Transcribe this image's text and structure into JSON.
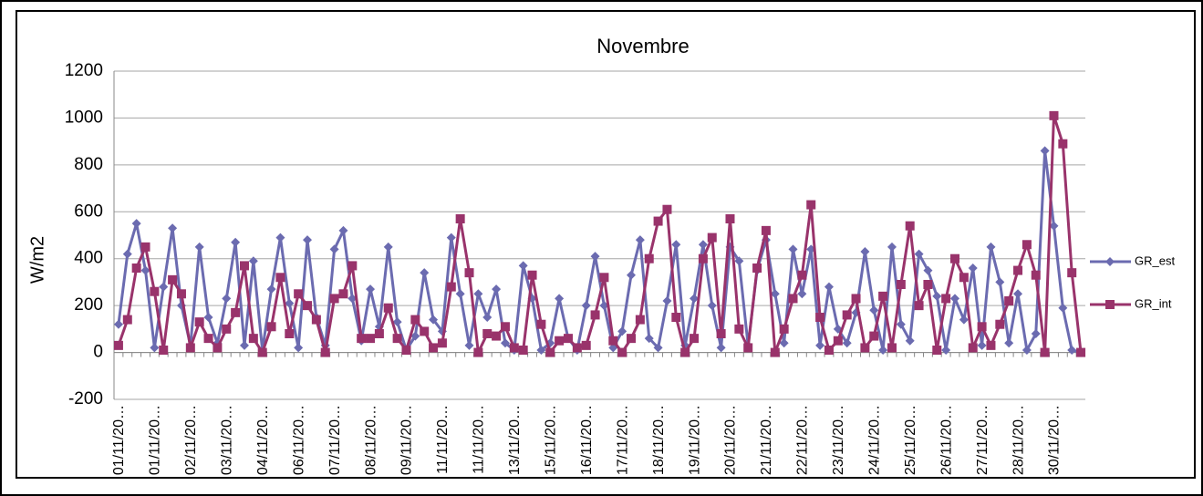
{
  "chart_data": {
    "type": "line",
    "title": "Novembre",
    "y_label": "W/m2",
    "categories": [
      "01/11/20…",
      null,
      null,
      null,
      "01/11/20…",
      null,
      null,
      null,
      "02/11/20…",
      null,
      null,
      null,
      "03/11/20…",
      null,
      null,
      null,
      "04/11/20…",
      null,
      null,
      null,
      "06/11/20…",
      null,
      null,
      null,
      "07/11/20…",
      null,
      null,
      null,
      "08/11/20…",
      null,
      null,
      null,
      "09/11/20…",
      null,
      null,
      null,
      "11/11/20…",
      null,
      null,
      null,
      "11/11/20…",
      null,
      null,
      null,
      "13/11/20…",
      null,
      null,
      null,
      "15/11/20…",
      null,
      null,
      null,
      "16/11/20…",
      null,
      null,
      null,
      "17/11/20…",
      null,
      null,
      null,
      "18/11/20…",
      null,
      null,
      null,
      "19/11/20…",
      null,
      null,
      null,
      "20/11/20…",
      null,
      null,
      null,
      "21/11/20…",
      null,
      null,
      null,
      "22/11/20…",
      null,
      null,
      null,
      "23/11/20…",
      null,
      null,
      null,
      "24/11/20…",
      null,
      null,
      null,
      "25/11/20…",
      null,
      null,
      null,
      "26/11/20…",
      null,
      null,
      null,
      "27/11/20…",
      null,
      null,
      null,
      "28/11/20…",
      null,
      null,
      null,
      "30/11/20…",
      null,
      null,
      null
    ],
    "series": [
      {
        "name": "GR_est",
        "color": "#6b6bb0",
        "marker": "diamond",
        "values": [
          120,
          420,
          550,
          350,
          20,
          280,
          530,
          200,
          30,
          450,
          150,
          40,
          230,
          470,
          30,
          390,
          10,
          270,
          490,
          210,
          20,
          480,
          150,
          30,
          440,
          520,
          230,
          50,
          270,
          110,
          450,
          130,
          10,
          70,
          340,
          140,
          90,
          490,
          250,
          30,
          250,
          150,
          270,
          40,
          10,
          370,
          230,
          10,
          40,
          230,
          60,
          10,
          200,
          410,
          200,
          20,
          90,
          330,
          480,
          60,
          20,
          220,
          460,
          30,
          230,
          460,
          200,
          20,
          450,
          390,
          30,
          350,
          480,
          250,
          40,
          440,
          250,
          440,
          30,
          280,
          100,
          40,
          170,
          430,
          180,
          10,
          450,
          120,
          50,
          420,
          350,
          240,
          10,
          230,
          140,
          360,
          30,
          450,
          300,
          40,
          250,
          10,
          80,
          860,
          540,
          190,
          10,
          0
        ]
      },
      {
        "name": "GR_int",
        "color": "#99336b",
        "marker": "square",
        "values": [
          30,
          140,
          360,
          450,
          260,
          10,
          310,
          250,
          20,
          130,
          60,
          20,
          100,
          170,
          370,
          60,
          0,
          110,
          320,
          80,
          250,
          200,
          140,
          0,
          230,
          250,
          370,
          60,
          60,
          80,
          190,
          60,
          10,
          140,
          90,
          20,
          40,
          280,
          570,
          340,
          0,
          80,
          70,
          110,
          20,
          10,
          330,
          120,
          0,
          50,
          60,
          20,
          30,
          160,
          320,
          50,
          0,
          60,
          140,
          400,
          560,
          610,
          150,
          0,
          60,
          400,
          490,
          80,
          570,
          100,
          20,
          360,
          520,
          0,
          100,
          230,
          330,
          630,
          150,
          10,
          50,
          160,
          230,
          20,
          70,
          240,
          20,
          290,
          540,
          200,
          290,
          10,
          230,
          400,
          320,
          20,
          110,
          30,
          120,
          220,
          350,
          460,
          330,
          0,
          1010,
          890,
          340,
          0
        ]
      }
    ],
    "ylim": [
      -200,
      1200
    ],
    "yticks": [
      -200,
      0,
      200,
      400,
      600,
      800,
      1000,
      1200
    ],
    "grid": true,
    "legend": "right"
  }
}
